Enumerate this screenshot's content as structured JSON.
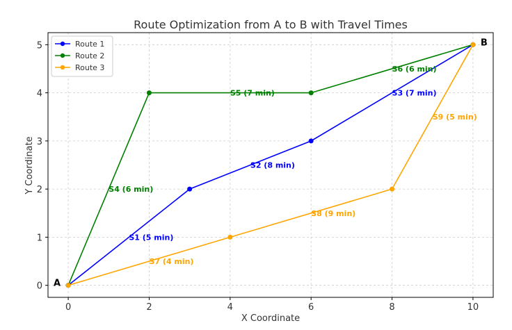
{
  "chart_data": {
    "type": "line",
    "title": "Route Optimization from A to B with Travel Times",
    "xlabel": "X Coordinate",
    "ylabel": "Y Coordinate",
    "xlim": [
      -0.5,
      10.5
    ],
    "ylim": [
      -0.25,
      5.25
    ],
    "x_ticks": [
      0,
      2,
      4,
      6,
      8,
      10
    ],
    "y_ticks": [
      0,
      1,
      2,
      3,
      4,
      5
    ],
    "grid": true,
    "legend_position": "top-left",
    "series": [
      {
        "name": "Route 1",
        "color": "#0000ff",
        "points": [
          [
            0,
            0
          ],
          [
            3,
            2
          ],
          [
            6,
            3
          ],
          [
            10,
            5
          ]
        ]
      },
      {
        "name": "Route 2",
        "color": "#008000",
        "points": [
          [
            0,
            0
          ],
          [
            2,
            4
          ],
          [
            6,
            4
          ],
          [
            10,
            5
          ]
        ]
      },
      {
        "name": "Route 3",
        "color": "#ffa500",
        "points": [
          [
            0,
            0
          ],
          [
            4,
            1
          ],
          [
            8,
            2
          ],
          [
            10,
            5
          ]
        ]
      }
    ],
    "segment_labels": [
      {
        "text": "S1 (5 min)",
        "x": 1.5,
        "y": 1.0,
        "color": "#0000ff"
      },
      {
        "text": "S2 (8 min)",
        "x": 4.5,
        "y": 2.5,
        "color": "#0000ff"
      },
      {
        "text": "S3 (7 min)",
        "x": 8.0,
        "y": 4.0,
        "color": "#0000ff"
      },
      {
        "text": "S4 (6 min)",
        "x": 1.0,
        "y": 2.0,
        "color": "#008000"
      },
      {
        "text": "S5 (7 min)",
        "x": 4.0,
        "y": 4.0,
        "color": "#008000"
      },
      {
        "text": "S6 (6 min)",
        "x": 8.0,
        "y": 4.5,
        "color": "#008000"
      },
      {
        "text": "S7 (4 min)",
        "x": 2.0,
        "y": 0.5,
        "color": "#ffa500"
      },
      {
        "text": "S8 (9 min)",
        "x": 6.0,
        "y": 1.5,
        "color": "#ffa500"
      },
      {
        "text": "S9 (5 min)",
        "x": 9.0,
        "y": 3.5,
        "color": "#ffa500"
      }
    ],
    "point_labels": [
      {
        "text": "A",
        "x": 0,
        "y": 0
      },
      {
        "text": "B",
        "x": 10,
        "y": 5
      }
    ]
  }
}
